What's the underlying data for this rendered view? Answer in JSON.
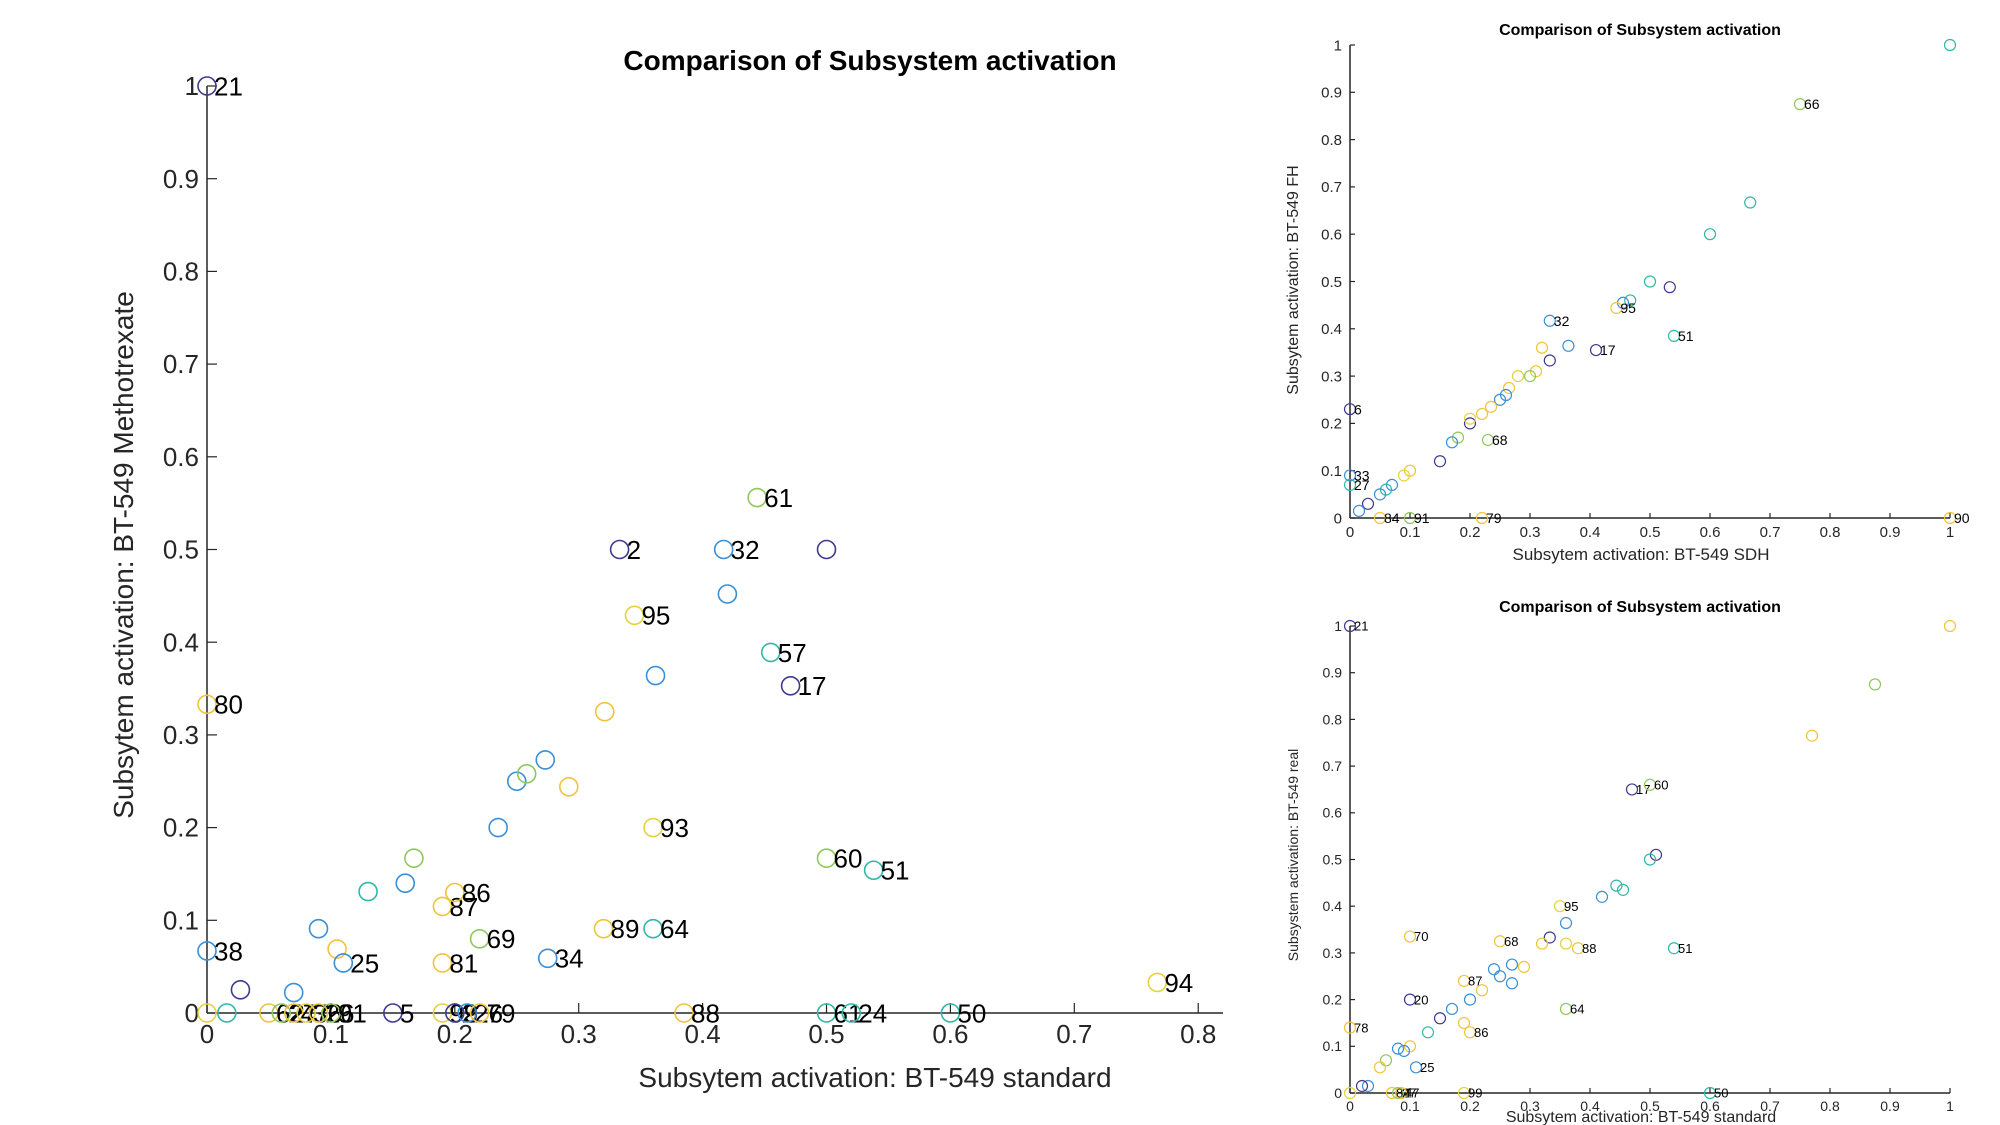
{
  "colors": [
    "#3e3b8f",
    "#3a8fd6",
    "#30b8a7",
    "#8fc85a",
    "#f0c43a",
    "#e6d13e"
  ],
  "chart_data": [
    {
      "type": "scatter",
      "title": "Comparison of Subsystem activation",
      "xlabel": "Subsytem activation: BT-549 standard",
      "ylabel": "Subsytem activation: BT-549 Methotrexate",
      "xlim": [
        0,
        0.82
      ],
      "ylim": [
        0,
        1
      ],
      "xticks": [
        "0",
        "0.1",
        "0.2",
        "0.3",
        "0.4",
        "0.5",
        "0.6",
        "0.7",
        "0.8"
      ],
      "yticks": [
        "0",
        "0.1",
        "0.2",
        "0.3",
        "0.4",
        "0.5",
        "0.6",
        "0.7",
        "0.8",
        "0.9",
        "1"
      ],
      "grid": false,
      "points": [
        {
          "x": 0.0,
          "y": 1.0,
          "label": "21",
          "c": 0
        },
        {
          "x": 0.0,
          "y": 0.333,
          "label": "80",
          "c": 4
        },
        {
          "x": 0.0,
          "y": 0.067,
          "label": "38",
          "c": 1
        },
        {
          "x": 0.0,
          "y": 0.0,
          "c": 5
        },
        {
          "x": 0.016,
          "y": 0.0,
          "c": 2
        },
        {
          "x": 0.027,
          "y": 0.025,
          "c": 0
        },
        {
          "x": 0.05,
          "y": 0.0,
          "label": "62",
          "c": 4
        },
        {
          "x": 0.06,
          "y": 0.0,
          "label": "27",
          "c": 3
        },
        {
          "x": 0.07,
          "y": 0.0,
          "label": "47",
          "c": 4
        },
        {
          "x": 0.08,
          "y": 0.0,
          "label": "36",
          "c": 5
        },
        {
          "x": 0.09,
          "y": 0.0,
          "label": "26",
          "c": 4
        },
        {
          "x": 0.1,
          "y": 0.0,
          "label": "91",
          "c": 3
        },
        {
          "x": 0.07,
          "y": 0.022,
          "c": 1
        },
        {
          "x": 0.09,
          "y": 0.091,
          "c": 1
        },
        {
          "x": 0.105,
          "y": 0.069,
          "c": 4
        },
        {
          "x": 0.11,
          "y": 0.054,
          "label": "25",
          "c": 1
        },
        {
          "x": 0.13,
          "y": 0.131,
          "c": 2
        },
        {
          "x": 0.15,
          "y": 0.0,
          "label": "5",
          "c": 0
        },
        {
          "x": 0.16,
          "y": 0.14,
          "c": 1
        },
        {
          "x": 0.167,
          "y": 0.167,
          "c": 3
        },
        {
          "x": 0.19,
          "y": 0.0,
          "label": "99",
          "c": 5
        },
        {
          "x": 0.2,
          "y": 0.0,
          "label": "2",
          "c": 0
        },
        {
          "x": 0.21,
          "y": 0.0,
          "label": "26",
          "c": 1
        },
        {
          "x": 0.22,
          "y": 0.0,
          "label": "79",
          "c": 4
        },
        {
          "x": 0.19,
          "y": 0.115,
          "label": "87",
          "c": 4
        },
        {
          "x": 0.2,
          "y": 0.13,
          "label": "86",
          "c": 4
        },
        {
          "x": 0.19,
          "y": 0.054,
          "label": "81",
          "c": 4
        },
        {
          "x": 0.22,
          "y": 0.08,
          "label": "69",
          "c": 3
        },
        {
          "x": 0.235,
          "y": 0.2,
          "c": 1
        },
        {
          "x": 0.25,
          "y": 0.25,
          "c": 1
        },
        {
          "x": 0.258,
          "y": 0.258,
          "c": 3
        },
        {
          "x": 0.273,
          "y": 0.273,
          "c": 1
        },
        {
          "x": 0.275,
          "y": 0.059,
          "label": "34",
          "c": 1
        },
        {
          "x": 0.292,
          "y": 0.244,
          "c": 4
        },
        {
          "x": 0.32,
          "y": 0.091,
          "label": "89",
          "c": 4
        },
        {
          "x": 0.321,
          "y": 0.325,
          "c": 4
        },
        {
          "x": 0.333,
          "y": 0.5,
          "label": "2",
          "c": 0
        },
        {
          "x": 0.36,
          "y": 0.2,
          "label": "93",
          "c": 5
        },
        {
          "x": 0.362,
          "y": 0.364,
          "c": 1
        },
        {
          "x": 0.36,
          "y": 0.091,
          "label": "64",
          "c": 2
        },
        {
          "x": 0.345,
          "y": 0.429,
          "label": "95",
          "c": 5
        },
        {
          "x": 0.385,
          "y": 0.0,
          "label": "88",
          "c": 4
        },
        {
          "x": 0.417,
          "y": 0.5,
          "label": "32",
          "c": 1
        },
        {
          "x": 0.42,
          "y": 0.452,
          "c": 1
        },
        {
          "x": 0.444,
          "y": 0.556,
          "label": "61",
          "c": 3
        },
        {
          "x": 0.455,
          "y": 0.389,
          "label": "57",
          "c": 2
        },
        {
          "x": 0.471,
          "y": 0.353,
          "label": "17",
          "c": 0
        },
        {
          "x": 0.5,
          "y": 0.5,
          "c": 0
        },
        {
          "x": 0.5,
          "y": 0.167,
          "label": "60",
          "c": 3
        },
        {
          "x": 0.5,
          "y": 0.0,
          "label": "61",
          "c": 2
        },
        {
          "x": 0.52,
          "y": 0.0,
          "label": "24",
          "c": 2
        },
        {
          "x": 0.538,
          "y": 0.154,
          "label": "51",
          "c": 2
        },
        {
          "x": 0.6,
          "y": 0.0,
          "label": "50",
          "c": 2
        },
        {
          "x": 0.767,
          "y": 0.033,
          "label": "94",
          "c": 5
        }
      ]
    },
    {
      "type": "scatter",
      "title": "Comparison of Subsystem activation",
      "xlabel": "Subsytem activation: BT-549 SDH",
      "ylabel": "Subsytem activation: BT-549 FH",
      "xlim": [
        0,
        1
      ],
      "ylim": [
        0,
        1
      ],
      "xticks": [
        "0",
        "0.1",
        "0.2",
        "0.3",
        "0.4",
        "0.5",
        "0.6",
        "0.7",
        "0.8",
        "0.9",
        "1"
      ],
      "yticks": [
        "0",
        "0.1",
        "0.2",
        "0.3",
        "0.4",
        "0.5",
        "0.6",
        "0.7",
        "0.8",
        "0.9",
        "1"
      ],
      "grid": false,
      "points": [
        {
          "x": 1.0,
          "y": 1.0,
          "c": 2
        },
        {
          "x": 0.75,
          "y": 0.875,
          "label": "66",
          "c": 3
        },
        {
          "x": 0.667,
          "y": 0.667,
          "c": 2
        },
        {
          "x": 0.6,
          "y": 0.6,
          "c": 2
        },
        {
          "x": 0.5,
          "y": 0.5,
          "c": 2
        },
        {
          "x": 0.533,
          "y": 0.488,
          "c": 0
        },
        {
          "x": 0.467,
          "y": 0.46,
          "c": 2
        },
        {
          "x": 0.455,
          "y": 0.455,
          "c": 1
        },
        {
          "x": 0.444,
          "y": 0.444,
          "label": "95",
          "c": 4
        },
        {
          "x": 0.333,
          "y": 0.417,
          "label": "32",
          "c": 1
        },
        {
          "x": 0.54,
          "y": 0.385,
          "label": "51",
          "c": 2
        },
        {
          "x": 0.364,
          "y": 0.364,
          "c": 1
        },
        {
          "x": 0.32,
          "y": 0.36,
          "c": 4
        },
        {
          "x": 0.41,
          "y": 0.355,
          "label": "17",
          "c": 0
        },
        {
          "x": 0.333,
          "y": 0.333,
          "c": 0
        },
        {
          "x": 0.31,
          "y": 0.31,
          "c": 4
        },
        {
          "x": 0.3,
          "y": 0.3,
          "c": 3
        },
        {
          "x": 0.28,
          "y": 0.3,
          "c": 5
        },
        {
          "x": 0.265,
          "y": 0.275,
          "c": 4
        },
        {
          "x": 0.26,
          "y": 0.26,
          "c": 1
        },
        {
          "x": 0.25,
          "y": 0.25,
          "c": 1
        },
        {
          "x": 0.235,
          "y": 0.235,
          "c": 4
        },
        {
          "x": 0.22,
          "y": 0.22,
          "c": 4
        },
        {
          "x": 0.2,
          "y": 0.2,
          "c": 0
        },
        {
          "x": 0.2,
          "y": 0.21,
          "c": 5
        },
        {
          "x": 0.18,
          "y": 0.17,
          "c": 3
        },
        {
          "x": 0.17,
          "y": 0.16,
          "c": 1
        },
        {
          "x": 0.15,
          "y": 0.12,
          "c": 0
        },
        {
          "x": 0.23,
          "y": 0.165,
          "label": "68",
          "c": 3
        },
        {
          "x": 0.1,
          "y": 0.1,
          "c": 4
        },
        {
          "x": 0.09,
          "y": 0.09,
          "c": 5
        },
        {
          "x": 0.07,
          "y": 0.07,
          "c": 1
        },
        {
          "x": 0.06,
          "y": 0.06,
          "c": 2
        },
        {
          "x": 0.05,
          "y": 0.05,
          "c": 1
        },
        {
          "x": 0.03,
          "y": 0.03,
          "c": 0
        },
        {
          "x": 0.015,
          "y": 0.015,
          "c": 1
        },
        {
          "x": 0.0,
          "y": 0.23,
          "label": "6",
          "c": 0
        },
        {
          "x": 0.0,
          "y": 0.09,
          "label": "33",
          "c": 1
        },
        {
          "x": 0.0,
          "y": 0.07,
          "label": "27",
          "c": 2
        },
        {
          "x": 0.05,
          "y": 0.0,
          "label": "84",
          "c": 4
        },
        {
          "x": 0.1,
          "y": 0.0,
          "label": "91",
          "c": 3
        },
        {
          "x": 0.22,
          "y": 0.0,
          "label": "79",
          "c": 4
        },
        {
          "x": 1.0,
          "y": 0.0,
          "label": "90",
          "c": 4
        }
      ]
    },
    {
      "type": "scatter",
      "title": "Comparison of Subsystem activation",
      "xlabel": "Subsytem activation: BT-549 standard",
      "ylabel": "Subsystem activation: BT-549 real",
      "xlim": [
        0,
        1
      ],
      "ylim": [
        0,
        1
      ],
      "xticks": [
        "0",
        "0.1",
        "0.2",
        "0.3",
        "0.4",
        "0.5",
        "0.6",
        "0.7",
        "0.8",
        "0.9",
        "1"
      ],
      "yticks": [
        "0",
        "0.1",
        "0.2",
        "0.3",
        "0.4",
        "0.5",
        "0.6",
        "0.7",
        "0.8",
        "0.9",
        "1"
      ],
      "grid": false,
      "points": [
        {
          "x": 0.0,
          "y": 1.0,
          "label": "21",
          "c": 0
        },
        {
          "x": 1.0,
          "y": 1.0,
          "c": 4
        },
        {
          "x": 0.875,
          "y": 0.875,
          "c": 3
        },
        {
          "x": 0.77,
          "y": 0.765,
          "c": 4
        },
        {
          "x": 0.47,
          "y": 0.65,
          "label": "17",
          "c": 0
        },
        {
          "x": 0.5,
          "y": 0.66,
          "label": "60",
          "c": 3
        },
        {
          "x": 0.51,
          "y": 0.51,
          "c": 0
        },
        {
          "x": 0.5,
          "y": 0.5,
          "c": 2
        },
        {
          "x": 0.444,
          "y": 0.444,
          "c": 2
        },
        {
          "x": 0.455,
          "y": 0.435,
          "c": 2
        },
        {
          "x": 0.42,
          "y": 0.42,
          "c": 1
        },
        {
          "x": 0.35,
          "y": 0.4,
          "label": "95",
          "c": 5
        },
        {
          "x": 0.36,
          "y": 0.364,
          "c": 1
        },
        {
          "x": 0.1,
          "y": 0.335,
          "label": "70",
          "c": 4
        },
        {
          "x": 0.25,
          "y": 0.325,
          "label": "68",
          "c": 4
        },
        {
          "x": 0.333,
          "y": 0.333,
          "c": 0
        },
        {
          "x": 0.32,
          "y": 0.32,
          "c": 4
        },
        {
          "x": 0.36,
          "y": 0.32,
          "c": 5
        },
        {
          "x": 0.38,
          "y": 0.31,
          "label": "88",
          "c": 4
        },
        {
          "x": 0.54,
          "y": 0.31,
          "label": "51",
          "c": 2
        },
        {
          "x": 0.29,
          "y": 0.27,
          "c": 4
        },
        {
          "x": 0.27,
          "y": 0.275,
          "c": 1
        },
        {
          "x": 0.24,
          "y": 0.265,
          "c": 1
        },
        {
          "x": 0.25,
          "y": 0.25,
          "c": 1
        },
        {
          "x": 0.19,
          "y": 0.24,
          "label": "87",
          "c": 4
        },
        {
          "x": 0.27,
          "y": 0.235,
          "c": 1
        },
        {
          "x": 0.22,
          "y": 0.22,
          "c": 4
        },
        {
          "x": 0.1,
          "y": 0.2,
          "label": "20",
          "c": 0
        },
        {
          "x": 0.2,
          "y": 0.2,
          "c": 1
        },
        {
          "x": 0.36,
          "y": 0.18,
          "label": "64",
          "c": 3
        },
        {
          "x": 0.17,
          "y": 0.18,
          "c": 1
        },
        {
          "x": 0.15,
          "y": 0.16,
          "c": 0
        },
        {
          "x": 0.13,
          "y": 0.13,
          "c": 2
        },
        {
          "x": 0.19,
          "y": 0.15,
          "c": 4
        },
        {
          "x": 0.2,
          "y": 0.13,
          "label": "86",
          "c": 4
        },
        {
          "x": 0.0,
          "y": 0.14,
          "label": "78",
          "c": 4
        },
        {
          "x": 0.1,
          "y": 0.1,
          "c": 4
        },
        {
          "x": 0.08,
          "y": 0.095,
          "c": 1
        },
        {
          "x": 0.06,
          "y": 0.07,
          "c": 3
        },
        {
          "x": 0.05,
          "y": 0.055,
          "c": 4
        },
        {
          "x": 0.11,
          "y": 0.055,
          "label": "25",
          "c": 1
        },
        {
          "x": 0.09,
          "y": 0.09,
          "c": 1
        },
        {
          "x": 0.03,
          "y": 0.015,
          "c": 1
        },
        {
          "x": 0.02,
          "y": 0.015,
          "c": 0
        },
        {
          "x": 0.0,
          "y": 0.0,
          "c": 5
        },
        {
          "x": 0.07,
          "y": 0.0,
          "label": "84",
          "c": 4
        },
        {
          "x": 0.08,
          "y": 0.0,
          "label": "27",
          "c": 3
        },
        {
          "x": 0.085,
          "y": 0.0,
          "label": "47",
          "c": 4
        },
        {
          "x": 0.19,
          "y": 0.0,
          "label": "99",
          "c": 5
        },
        {
          "x": 0.6,
          "y": 0.0,
          "label": "50",
          "c": 2
        }
      ]
    }
  ]
}
